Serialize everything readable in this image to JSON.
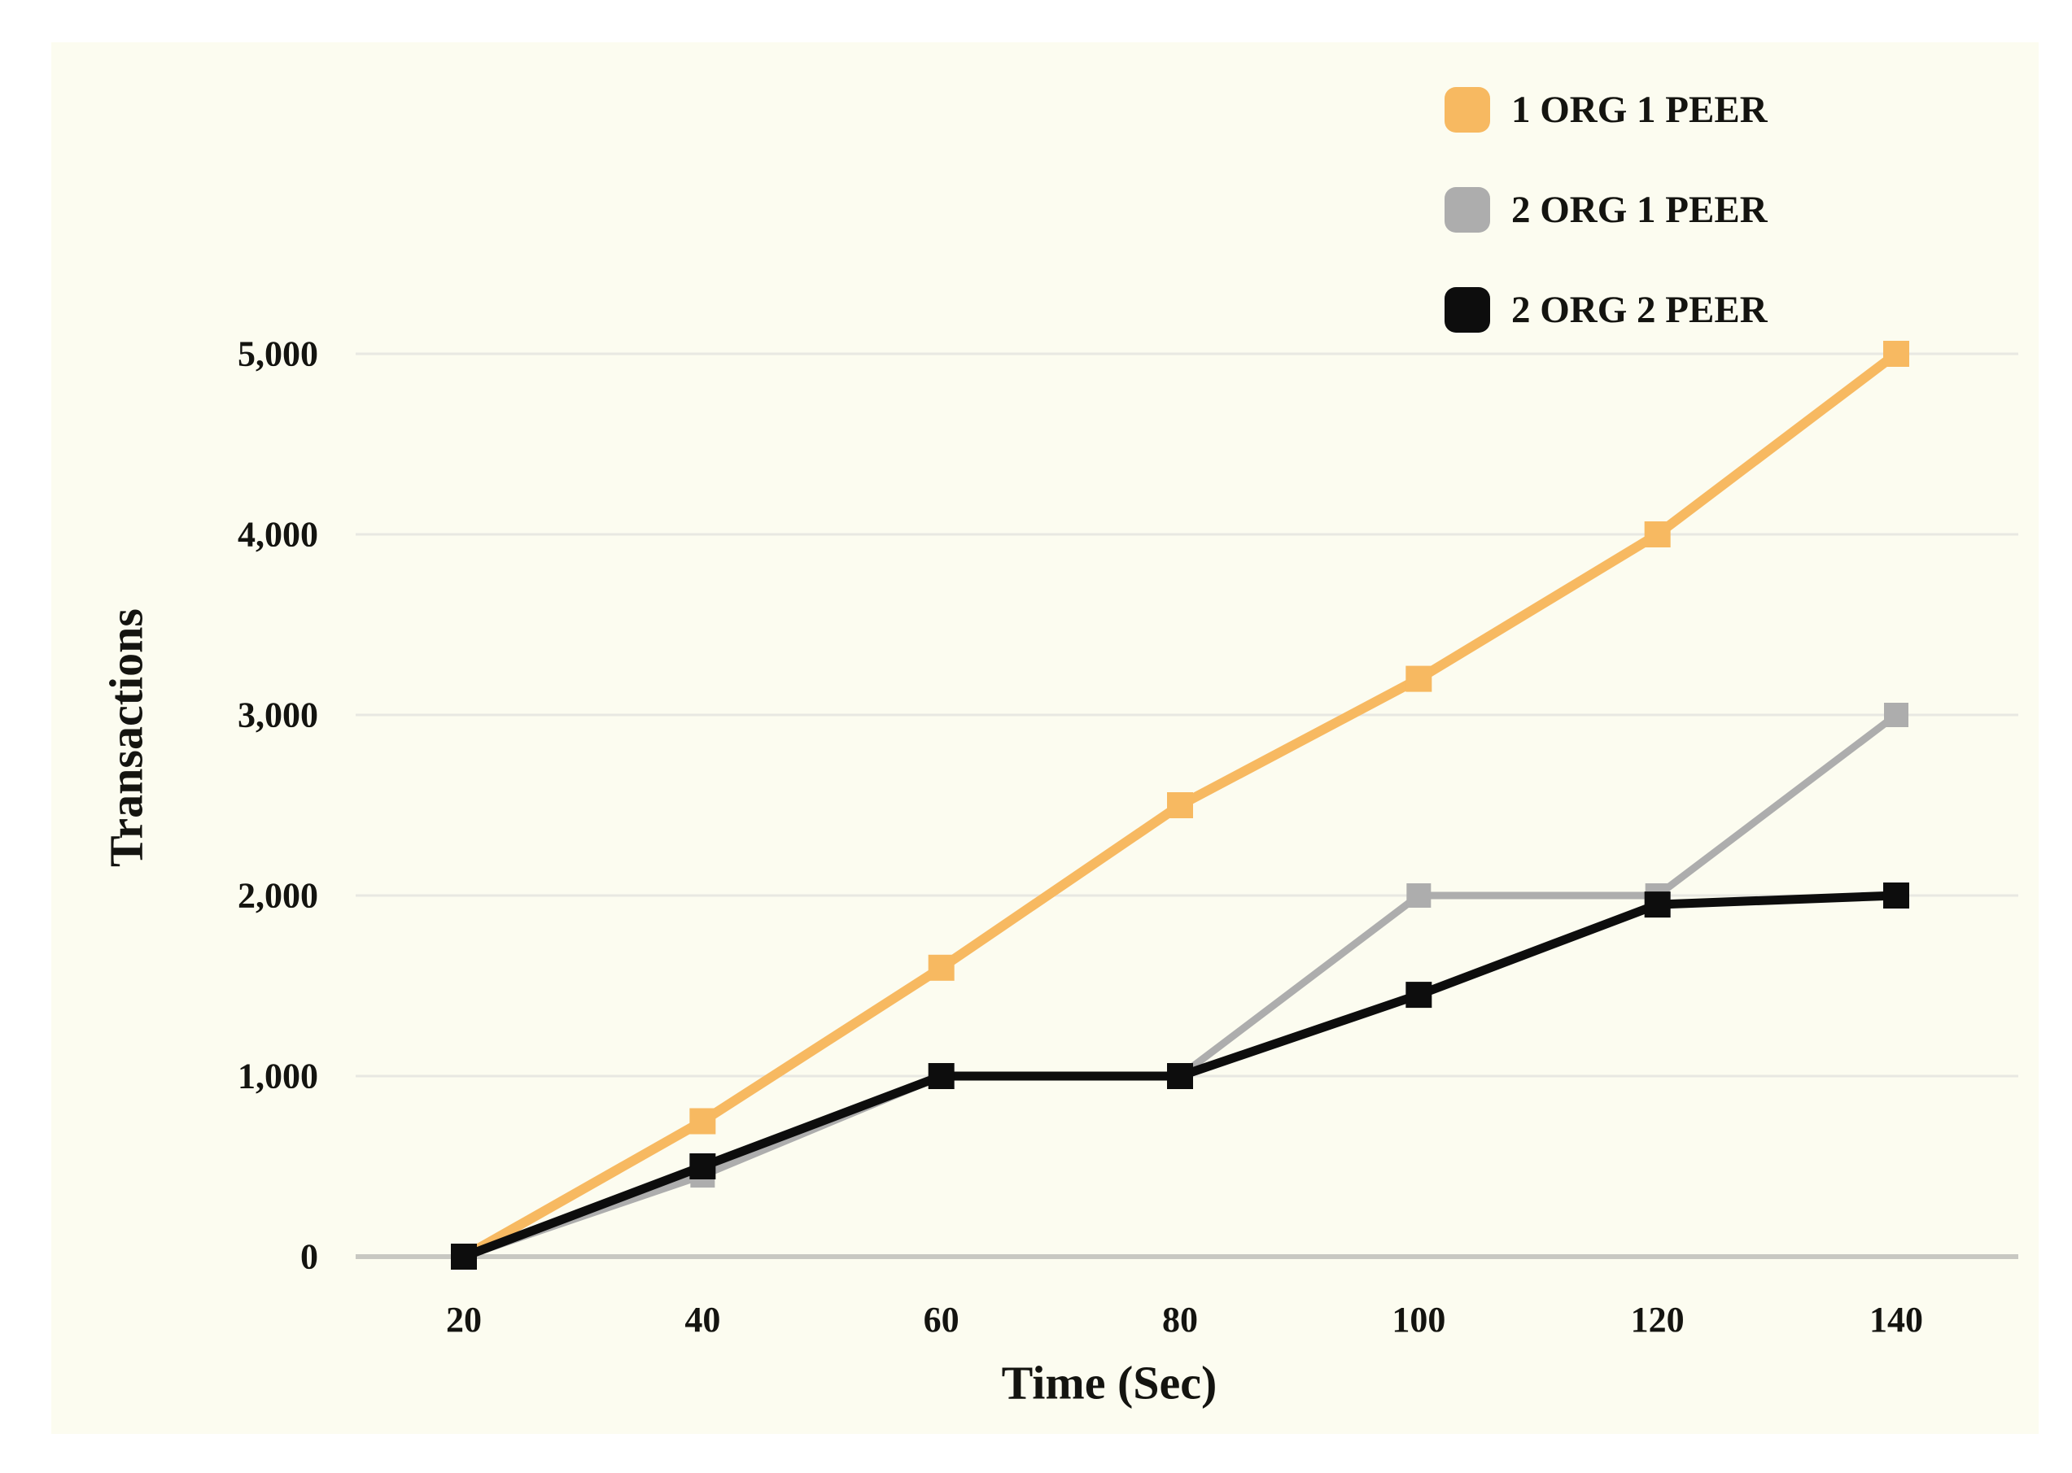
{
  "page": {
    "background": "#ffffff",
    "panel_background": "#fcfcf0"
  },
  "chart_data": {
    "type": "line",
    "title": "",
    "xlabel": "Time (Sec)",
    "ylabel": "Transactions",
    "x": [
      20,
      40,
      60,
      80,
      100,
      120,
      140
    ],
    "x_tick_labels": [
      "20",
      "40",
      "60",
      "80",
      "100",
      "120",
      "140"
    ],
    "y_ticks": [
      0,
      1000,
      2000,
      3000,
      4000,
      5000
    ],
    "y_tick_labels": [
      "0",
      "1,000",
      "2,000",
      "3,000",
      "4,000",
      "5,000"
    ],
    "xlim": [
      20,
      140
    ],
    "ylim": [
      0,
      5000
    ],
    "grid": "horizontal",
    "legend_position": "top-right",
    "marker": "square",
    "series": [
      {
        "name": "1 ORG 1 PEER",
        "color": "#f7b961",
        "values": [
          0,
          750,
          1600,
          2500,
          3200,
          4000,
          5000
        ]
      },
      {
        "name": "2 ORG 1 PEER",
        "color": "#adadad",
        "values": [
          0,
          450,
          1000,
          1000,
          2000,
          2000,
          3000
        ]
      },
      {
        "name": "2 ORG 2 PEER",
        "color": "#0d0d0d",
        "values": [
          0,
          500,
          1000,
          1000,
          1450,
          1950,
          2000
        ]
      }
    ],
    "colors": {
      "gridline": "#e8e8e2",
      "baseline": "#c8c8c2",
      "text": "#141410"
    }
  }
}
